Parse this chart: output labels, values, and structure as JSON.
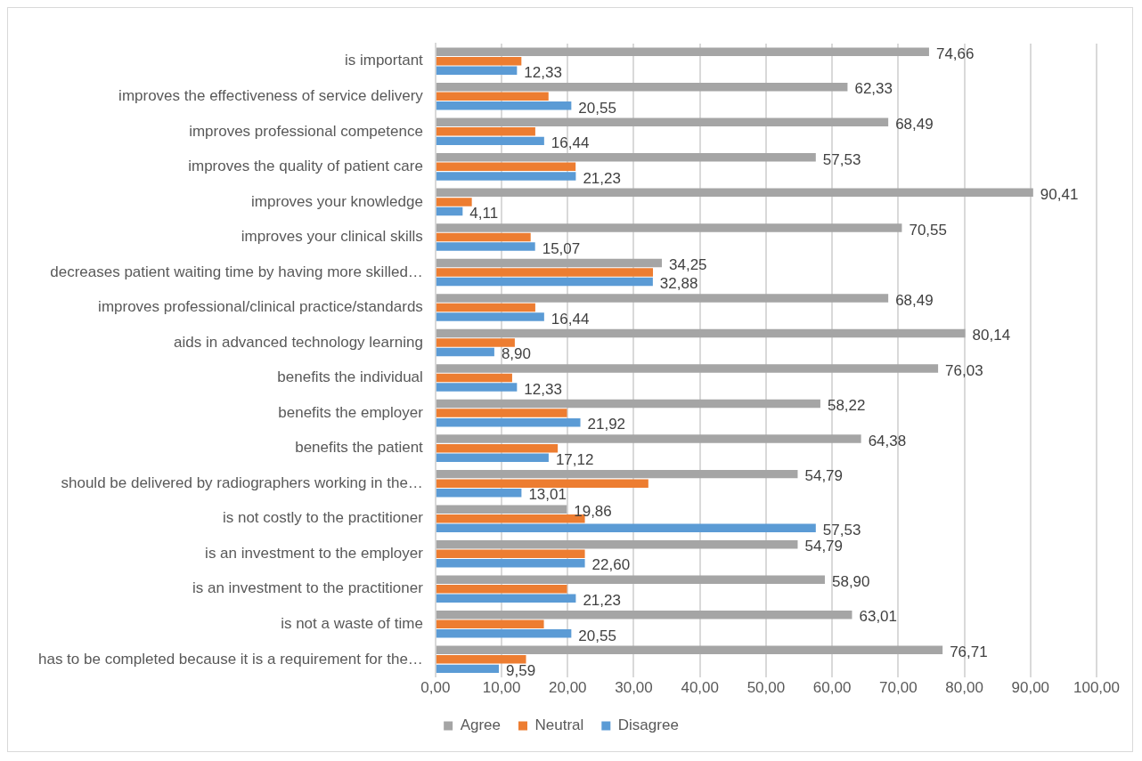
{
  "chart_data": {
    "type": "bar",
    "orientation": "horizontal",
    "categories": [
      "is important",
      "improves the effectiveness of service delivery",
      "improves professional competence",
      "improves the quality of patient care",
      "improves your knowledge",
      "improves your clinical skills",
      "decreases patient waiting time by having more skilled…",
      "improves professional/clinical practice/standards",
      "aids in advanced technology learning",
      "benefits the individual",
      "benefits the employer",
      "benefits the patient",
      "should be delivered by radiographers working in the…",
      "is not costly to the practitioner",
      "is an investment to the employer",
      "is an investment to the practitioner",
      "is not a waste of time",
      "has to be completed because it is a requirement for the…"
    ],
    "series": [
      {
        "name": "Agree",
        "color": "#a5a5a5",
        "values": [
          74.66,
          62.33,
          68.49,
          57.53,
          90.41,
          70.55,
          34.25,
          68.49,
          80.14,
          76.03,
          58.22,
          64.38,
          54.79,
          19.86,
          54.79,
          58.9,
          63.01,
          76.71
        ],
        "value_labels": [
          "74,66",
          "62,33",
          "68,49",
          "57,53",
          "90,41",
          "70,55",
          "34,25",
          "68,49",
          "80,14",
          "76,03",
          "58,22",
          "64,38",
          "54,79",
          "19,86",
          "54,79",
          "58,90",
          "63,01",
          "76,71"
        ]
      },
      {
        "name": "Neutral",
        "color": "#ed7d31",
        "values": [
          13.0,
          17.1,
          15.1,
          21.2,
          5.5,
          14.4,
          32.9,
          15.1,
          12.0,
          11.6,
          19.9,
          18.5,
          32.2,
          22.6,
          22.6,
          19.9,
          16.4,
          13.7
        ]
      },
      {
        "name": "Disagree",
        "color": "#5b9bd5",
        "values": [
          12.33,
          20.55,
          16.44,
          21.23,
          4.11,
          15.07,
          32.88,
          16.44,
          8.9,
          12.33,
          21.92,
          17.12,
          13.01,
          57.53,
          22.6,
          21.23,
          20.55,
          9.59
        ],
        "value_labels": [
          "12,33",
          "20,55",
          "16,44",
          "21,23",
          "4,11",
          "15,07",
          "32,88",
          "16,44",
          "8,90",
          "12,33",
          "21,92",
          "17,12",
          "13,01",
          "57,53",
          "22,60",
          "21,23",
          "20,55",
          "9,59"
        ]
      }
    ],
    "xlim": [
      0,
      100
    ],
    "xticks": [
      {
        "value": 0,
        "label": "0,00"
      },
      {
        "value": 10,
        "label": "10,00"
      },
      {
        "value": 20,
        "label": "20,00"
      },
      {
        "value": 30,
        "label": "30,00"
      },
      {
        "value": 40,
        "label": "40,00"
      },
      {
        "value": 50,
        "label": "50,00"
      },
      {
        "value": 60,
        "label": "60,00"
      },
      {
        "value": 70,
        "label": "70,00"
      },
      {
        "value": 80,
        "label": "80,00"
      },
      {
        "value": 90,
        "label": "90,00"
      },
      {
        "value": 100,
        "label": "100,00"
      }
    ],
    "grid": "x",
    "legend": "bottom"
  }
}
